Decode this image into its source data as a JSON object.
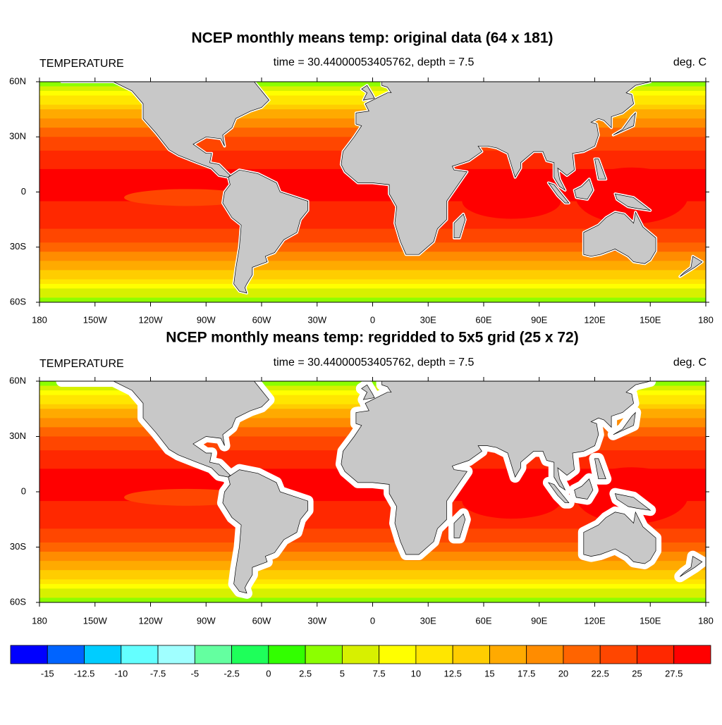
{
  "panels": [
    {
      "title": "NCEP monthly means temp: original data (64 x 181)",
      "left_label": "TEMPERATURE",
      "center_label": "time = 30.44000053405762, depth = 7.5",
      "right_label": "deg. C"
    },
    {
      "title": "NCEP monthly means temp: regridded to 5x5 grid (25 x 72)",
      "left_label": "TEMPERATURE",
      "center_label": "time = 30.44000053405762, depth = 7.5",
      "right_label": "deg. C"
    }
  ],
  "lat_labels": [
    "60N",
    "30N",
    "0",
    "30S",
    "60S"
  ],
  "lon_labels": [
    "180",
    "150W",
    "120W",
    "90W",
    "60W",
    "30W",
    "0",
    "30E",
    "60E",
    "90E",
    "120E",
    "150E",
    "180"
  ],
  "colorbar": {
    "labels": [
      "-15",
      "-12.5",
      "-10",
      "-7.5",
      "-5",
      "-2.5",
      "0",
      "2.5",
      "5",
      "7.5",
      "10",
      "12.5",
      "15",
      "17.5",
      "20",
      "22.5",
      "25",
      "27.5"
    ],
    "colors": [
      "#0000ff",
      "#0064ff",
      "#00cdff",
      "#64ffff",
      "#a0ffff",
      "#64ffa0",
      "#1eff5a",
      "#32ff00",
      "#8cff00",
      "#d7f000",
      "#ffff00",
      "#ffe600",
      "#ffcd00",
      "#ffaa00",
      "#ff8c00",
      "#ff6400",
      "#ff4600",
      "#ff2800",
      "#ff0000"
    ]
  }
}
